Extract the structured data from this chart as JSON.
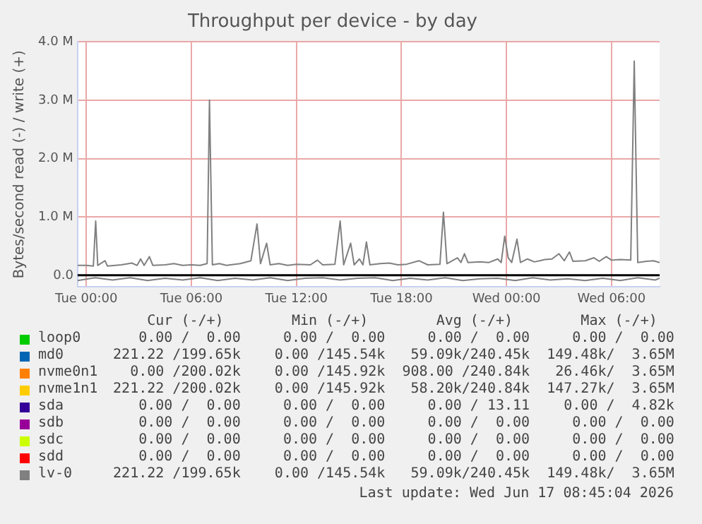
{
  "chart_data": {
    "type": "line",
    "title": "Throughput per device - by day",
    "ylabel": "Bytes/second read (-) / write (+)",
    "x": [
      "2026-06-15T23:30",
      "2026-06-16T00:00",
      "2026-06-16T00:24",
      "2026-06-16T00:32",
      "2026-06-16T00:39",
      "2026-06-16T01:04",
      "2026-06-16T01:12",
      "2026-06-16T02:00",
      "2026-06-16T02:36",
      "2026-06-16T02:54",
      "2026-06-16T03:06",
      "2026-06-16T03:18",
      "2026-06-16T03:36",
      "2026-06-16T03:48",
      "2026-06-16T04:30",
      "2026-06-16T05:00",
      "2026-06-16T05:30",
      "2026-06-16T06:00",
      "2026-06-16T06:30",
      "2026-06-16T06:54",
      "2026-06-16T07:02",
      "2026-06-16T07:12",
      "2026-06-16T07:36",
      "2026-06-16T08:00",
      "2026-06-16T08:48",
      "2026-06-16T09:24",
      "2026-06-16T09:45",
      "2026-06-16T09:57",
      "2026-06-16T10:18",
      "2026-06-16T10:30",
      "2026-06-16T11:00",
      "2026-06-16T11:30",
      "2026-06-16T12:00",
      "2026-06-16T12:48",
      "2026-06-16T13:12",
      "2026-06-16T13:30",
      "2026-06-16T14:12",
      "2026-06-16T14:30",
      "2026-06-16T14:42",
      "2026-06-16T15:06",
      "2026-06-16T15:18",
      "2026-06-16T15:36",
      "2026-06-16T15:48",
      "2026-06-16T16:00",
      "2026-06-16T16:12",
      "2026-06-16T16:48",
      "2026-06-16T17:18",
      "2026-06-16T17:48",
      "2026-06-16T18:18",
      "2026-06-16T19:00",
      "2026-06-16T19:30",
      "2026-06-16T20:12",
      "2026-06-16T20:24",
      "2026-06-16T20:36",
      "2026-06-16T21:12",
      "2026-06-16T21:24",
      "2026-06-16T21:36",
      "2026-06-16T21:48",
      "2026-06-16T22:30",
      "2026-06-16T23:00",
      "2026-06-16T23:30",
      "2026-06-16T23:42",
      "2026-06-16T23:54",
      "2026-06-17T00:06",
      "2026-06-17T00:18",
      "2026-06-17T00:36",
      "2026-06-17T00:48",
      "2026-06-17T01:12",
      "2026-06-17T01:36",
      "2026-06-17T02:12",
      "2026-06-17T02:36",
      "2026-06-17T03:00",
      "2026-06-17T03:18",
      "2026-06-17T03:36",
      "2026-06-17T03:48",
      "2026-06-17T04:30",
      "2026-06-17T05:00",
      "2026-06-17T05:18",
      "2026-06-17T05:42",
      "2026-06-17T06:00",
      "2026-06-17T06:30",
      "2026-06-17T07:06",
      "2026-06-17T07:18",
      "2026-06-17T07:30",
      "2026-06-17T08:00",
      "2026-06-17T08:24",
      "2026-06-17T08:45"
    ],
    "series": [
      {
        "name": "loop0",
        "color": "#00cc00",
        "values": [
          null,
          null,
          null,
          null,
          null,
          null,
          null,
          null,
          null,
          null,
          null,
          null,
          null,
          null,
          null,
          null,
          null,
          null,
          null,
          null,
          null,
          null,
          null,
          null,
          null,
          null,
          null,
          null,
          null,
          null,
          null,
          null,
          null,
          null,
          null,
          null,
          null,
          null,
          null,
          null,
          null,
          null,
          null,
          null,
          null,
          null,
          null,
          null,
          null,
          null,
          null,
          null,
          null,
          null,
          null,
          null,
          null,
          null,
          null,
          null,
          null,
          null,
          null,
          null,
          null,
          null,
          null,
          null,
          null,
          null,
          null,
          null,
          null,
          null,
          null,
          null,
          null,
          null,
          null,
          null,
          null,
          null,
          null,
          null,
          null,
          null,
          null
        ]
      },
      {
        "name": "md0",
        "color": "#0066b3",
        "values": [
          null,
          null,
          null,
          null,
          null,
          null,
          null,
          null,
          null,
          null,
          null,
          null,
          null,
          null,
          null,
          null,
          null,
          null,
          null,
          null,
          null,
          null,
          null,
          null,
          null,
          null,
          null,
          null,
          null,
          null,
          null,
          null,
          null,
          null,
          null,
          null,
          null,
          null,
          null,
          null,
          null,
          null,
          null,
          null,
          null,
          null,
          null,
          null,
          null,
          null,
          null,
          null,
          null,
          null,
          null,
          null,
          null,
          null,
          null,
          null,
          null,
          null,
          null,
          null,
          null,
          null,
          null,
          null,
          null,
          null,
          null,
          null,
          null,
          null,
          null,
          null,
          null,
          null,
          null,
          null,
          null,
          null,
          null,
          null,
          null,
          null,
          null
        ]
      },
      {
        "name": "nvme0n1",
        "color": "#ff8000",
        "values": [
          null,
          null,
          null,
          null,
          null,
          null,
          null,
          null,
          null,
          null,
          null,
          null,
          null,
          null,
          null,
          null,
          null,
          null,
          null,
          null,
          null,
          null,
          null,
          null,
          null,
          null,
          null,
          null,
          null,
          null,
          null,
          null,
          null,
          null,
          null,
          null,
          null,
          null,
          null,
          null,
          null,
          null,
          null,
          null,
          null,
          null,
          null,
          null,
          null,
          null,
          null,
          null,
          null,
          null,
          null,
          null,
          null,
          null,
          null,
          null,
          null,
          null,
          null,
          null,
          null,
          null,
          null,
          null,
          null,
          null,
          null,
          null,
          null,
          null,
          null,
          null,
          null,
          null,
          null,
          null,
          null,
          null,
          null,
          null,
          null,
          null,
          null
        ]
      },
      {
        "name": "nvme1n1",
        "color": "#ffcc00",
        "values": [
          null,
          null,
          null,
          null,
          null,
          null,
          null,
          null,
          null,
          null,
          null,
          null,
          null,
          null,
          null,
          null,
          null,
          null,
          null,
          null,
          null,
          null,
          null,
          null,
          null,
          null,
          null,
          null,
          null,
          null,
          null,
          null,
          null,
          null,
          null,
          null,
          null,
          null,
          null,
          null,
          null,
          null,
          null,
          null,
          null,
          null,
          null,
          null,
          null,
          null,
          null,
          null,
          null,
          null,
          null,
          null,
          null,
          null,
          null,
          null,
          null,
          null,
          null,
          null,
          null,
          null,
          null,
          null,
          null,
          null,
          null,
          null,
          null,
          null,
          null,
          null,
          null,
          null,
          null,
          null,
          null,
          null,
          null,
          null,
          null,
          null,
          null
        ]
      },
      {
        "name": "sda",
        "color": "#330099",
        "values": [
          null,
          null,
          null,
          null,
          null,
          null,
          null,
          null,
          null,
          null,
          null,
          null,
          null,
          null,
          null,
          null,
          null,
          null,
          null,
          null,
          null,
          null,
          null,
          null,
          null,
          null,
          null,
          null,
          null,
          null,
          null,
          null,
          null,
          null,
          null,
          null,
          null,
          null,
          null,
          null,
          null,
          null,
          null,
          null,
          null,
          null,
          null,
          null,
          null,
          null,
          null,
          null,
          null,
          null,
          null,
          null,
          null,
          null,
          null,
          null,
          null,
          null,
          null,
          null,
          null,
          null,
          null,
          null,
          null,
          null,
          null,
          null,
          null,
          null,
          null,
          null,
          null,
          null,
          null,
          null,
          null,
          null,
          null,
          null,
          null,
          null,
          null
        ]
      },
      {
        "name": "sdb",
        "color": "#990099",
        "values": [
          null,
          null,
          null,
          null,
          null,
          null,
          null,
          null,
          null,
          null,
          null,
          null,
          null,
          null,
          null,
          null,
          null,
          null,
          null,
          null,
          null,
          null,
          null,
          null,
          null,
          null,
          null,
          null,
          null,
          null,
          null,
          null,
          null,
          null,
          null,
          null,
          null,
          null,
          null,
          null,
          null,
          null,
          null,
          null,
          null,
          null,
          null,
          null,
          null,
          null,
          null,
          null,
          null,
          null,
          null,
          null,
          null,
          null,
          null,
          null,
          null,
          null,
          null,
          null,
          null,
          null,
          null,
          null,
          null,
          null,
          null,
          null,
          null,
          null,
          null,
          null,
          null,
          null,
          null,
          null,
          null,
          null,
          null,
          null,
          null,
          null,
          null
        ]
      },
      {
        "name": "sdc",
        "color": "#ccff00",
        "values": [
          null,
          null,
          null,
          null,
          null,
          null,
          null,
          null,
          null,
          null,
          null,
          null,
          null,
          null,
          null,
          null,
          null,
          null,
          null,
          null,
          null,
          null,
          null,
          null,
          null,
          null,
          null,
          null,
          null,
          null,
          null,
          null,
          null,
          null,
          null,
          null,
          null,
          null,
          null,
          null,
          null,
          null,
          null,
          null,
          null,
          null,
          null,
          null,
          null,
          null,
          null,
          null,
          null,
          null,
          null,
          null,
          null,
          null,
          null,
          null,
          null,
          null,
          null,
          null,
          null,
          null,
          null,
          null,
          null,
          null,
          null,
          null,
          null,
          null,
          null,
          null,
          null,
          null,
          null,
          null,
          null,
          null,
          null,
          null,
          null,
          null,
          null
        ]
      },
      {
        "name": "sdd",
        "color": "#ff0000",
        "values": [
          null,
          null,
          null,
          null,
          null,
          null,
          null,
          null,
          null,
          null,
          null,
          null,
          null,
          null,
          null,
          null,
          null,
          null,
          null,
          null,
          null,
          null,
          null,
          null,
          null,
          null,
          null,
          null,
          null,
          null,
          null,
          null,
          null,
          null,
          null,
          null,
          null,
          null,
          null,
          null,
          null,
          null,
          null,
          null,
          null,
          null,
          null,
          null,
          null,
          null,
          null,
          null,
          null,
          null,
          null,
          null,
          null,
          null,
          null,
          null,
          null,
          null,
          null,
          null,
          null,
          null,
          null,
          null,
          null,
          null,
          null,
          null,
          null,
          null,
          null,
          null,
          null,
          null,
          null,
          null,
          null,
          null,
          null,
          null,
          null,
          null,
          null
        ]
      },
      {
        "name": "lv-0",
        "color": "#808080",
        "values": [
          170000,
          170000,
          160000,
          930000,
          170000,
          250000,
          160000,
          180000,
          210000,
          170000,
          280000,
          170000,
          320000,
          170000,
          180000,
          200000,
          170000,
          180000,
          170000,
          200000,
          3000000,
          180000,
          200000,
          170000,
          200000,
          250000,
          880000,
          200000,
          550000,
          180000,
          200000,
          170000,
          190000,
          180000,
          260000,
          180000,
          190000,
          930000,
          180000,
          550000,
          180000,
          280000,
          180000,
          570000,
          180000,
          200000,
          210000,
          180000,
          190000,
          250000,
          180000,
          190000,
          1080000,
          200000,
          300000,
          220000,
          370000,
          220000,
          230000,
          220000,
          280000,
          220000,
          670000,
          300000,
          220000,
          620000,
          220000,
          280000,
          230000,
          270000,
          280000,
          370000,
          250000,
          400000,
          240000,
          250000,
          300000,
          240000,
          320000,
          260000,
          270000,
          260000,
          3670000,
          220000,
          240000,
          250000,
          220000
        ]
      },
      {
        "color": "#808080",
        "x": [
          "2026-06-15T23:30",
          "2026-06-16T00:30",
          "2026-06-16T01:30",
          "2026-06-16T02:30",
          "2026-06-16T03:30",
          "2026-06-16T04:30",
          "2026-06-16T05:30",
          "2026-06-16T06:30",
          "2026-06-16T07:30",
          "2026-06-16T08:30",
          "2026-06-16T09:30",
          "2026-06-16T10:30",
          "2026-06-16T11:30",
          "2026-06-16T12:30",
          "2026-06-16T13:30",
          "2026-06-16T14:30",
          "2026-06-16T15:30",
          "2026-06-16T16:30",
          "2026-06-16T17:30",
          "2026-06-16T18:30",
          "2026-06-16T19:30",
          "2026-06-16T20:30",
          "2026-06-16T21:30",
          "2026-06-16T22:30",
          "2026-06-16T23:30",
          "2026-06-17T00:30",
          "2026-06-17T01:30",
          "2026-06-17T02:30",
          "2026-06-17T03:30",
          "2026-06-17T04:30",
          "2026-06-17T05:30",
          "2026-06-17T06:30",
          "2026-06-17T07:30",
          "2026-06-17T08:30",
          "2026-06-17T08:45"
        ],
        "values": [
          -90000,
          -40000,
          -80000,
          -40000,
          -90000,
          -50000,
          -80000,
          -40000,
          -90000,
          -50000,
          -80000,
          -40000,
          -90000,
          -50000,
          -40000,
          -80000,
          -50000,
          -40000,
          -90000,
          -50000,
          -80000,
          -40000,
          -90000,
          -60000,
          -50000,
          -90000,
          -40000,
          -80000,
          -60000,
          -90000,
          -50000,
          -90000,
          -40000,
          -80000,
          -50000
        ]
      }
    ],
    "xlim": [
      "2026-06-15T23:30",
      "2026-06-17T08:45"
    ],
    "xticks": [
      {
        "value": "2026-06-16T00:00",
        "label": "Tue 00:00"
      },
      {
        "value": "2026-06-16T06:00",
        "label": "Tue 06:00"
      },
      {
        "value": "2026-06-16T12:00",
        "label": "Tue 12:00"
      },
      {
        "value": "2026-06-16T18:00",
        "label": "Tue 18:00"
      },
      {
        "value": "2026-06-17T00:00",
        "label": "Wed 00:00"
      },
      {
        "value": "2026-06-17T06:00",
        "label": "Wed 06:00"
      }
    ],
    "ylim": [
      -200000,
      4000000
    ],
    "yticks": [
      {
        "value": 0,
        "label": "0.0"
      },
      {
        "value": 1000000,
        "label": "1.0 M"
      },
      {
        "value": 2000000,
        "label": "2.0 M"
      },
      {
        "value": 3000000,
        "label": "3.0 M"
      },
      {
        "value": 4000000,
        "label": "4.0 M"
      }
    ],
    "ref_lines": [
      {
        "axis": "y",
        "value": 0,
        "color": "#000000"
      }
    ],
    "grid": true,
    "legend": "bottom",
    "marker": "none",
    "line_style": "solid",
    "annotations": [
      "      Cur (-/+)        Min (-/+)        Avg (-/+)        Max (-/+)  ",
      "     0.00 /  0.00     0.00 /  0.00     0.00 /  0.00     0.00 /  0.00",
      "  221.22 /199.65k    0.00 /145.54k   59.09k/240.45k  149.48k/  3.65M",
      "    0.00 /200.02k    0.00 /145.92k  908.00 /240.84k   26.46k/  3.65M",
      "  221.22 /200.02k    0.00 /145.92k   58.20k/240.84k  147.27k/  3.65M",
      "     0.00 /  0.00     0.00 /  0.00     0.00 / 13.11    0.00 /  4.82k",
      "     0.00 /  0.00     0.00 /  0.00     0.00 /  0.00     0.00 /  0.00",
      "     0.00 /  0.00     0.00 /  0.00     0.00 /  0.00     0.00 /  0.00",
      "     0.00 /  0.00     0.00 /  0.00     0.00 /  0.00     0.00 /  0.00",
      "  221.22 /199.65k    0.00 /145.54k   59.09k/240.45k  149.48k/  3.65M",
      "Last update: Wed Jun 17 08:45:04 2026"
    ]
  }
}
